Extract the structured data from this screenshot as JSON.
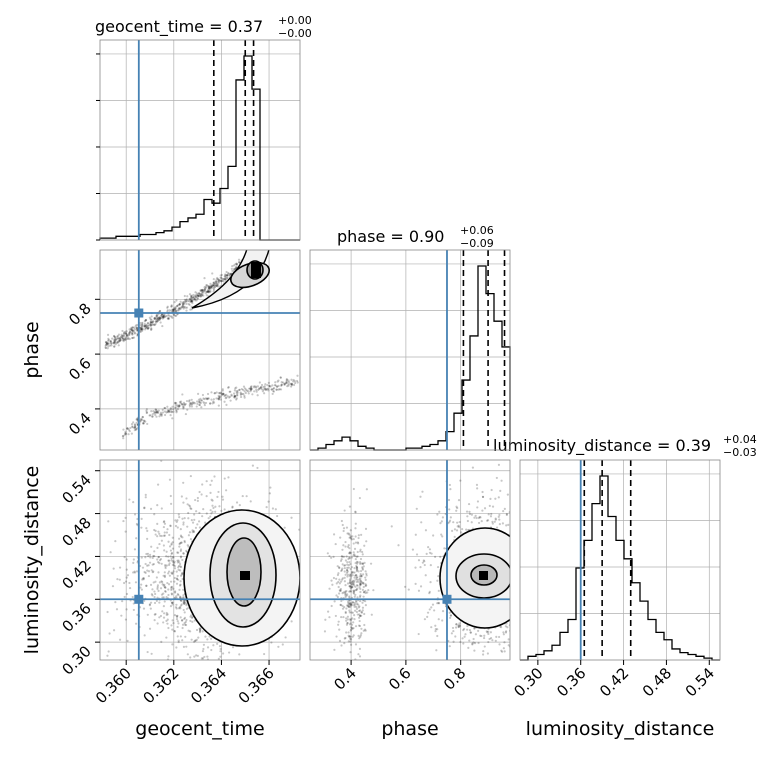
{
  "chart_data": {
    "type": "corner",
    "parameters": [
      "geocent_time",
      "phase",
      "luminosity_distance"
    ],
    "truths": {
      "geocent_time": 0.36053,
      "phase": 0.75,
      "luminosity_distance": 0.36
    },
    "colors": {
      "truth": "#4682b4",
      "hist": "#000000",
      "grid": "#b0b0b0",
      "scatter": "#000000"
    },
    "grid": true,
    "titles": [
      {
        "param": "geocent_time",
        "text": "geocent_time = 0.37",
        "plus": "+0.00",
        "minus": "−0.00"
      },
      {
        "param": "phase",
        "text": "phase = 0.90",
        "plus": "+0.06",
        "minus": "−0.09"
      },
      {
        "param": "luminosity_distance",
        "text": "luminosity_distance = 0.39",
        "plus": "+0.04",
        "minus": "−0.03"
      }
    ],
    "axes": {
      "geocent_time": {
        "label": "geocent_time",
        "range": [
          0.3589,
          0.3673
        ],
        "ticks": [
          "0.360",
          "0.362",
          "0.364",
          "0.366"
        ],
        "tick_values": [
          0.36,
          0.362,
          0.364,
          0.366
        ]
      },
      "phase": {
        "label": "phase",
        "range": [
          0.25,
          0.98
        ],
        "ticks": [
          "0.4",
          "0.6",
          "0.8"
        ],
        "tick_values": [
          0.4,
          0.6,
          0.8
        ]
      },
      "luminosity_distance": {
        "label": "luminosity_distance",
        "range": [
          0.275,
          0.555
        ],
        "ticks": [
          "0.30",
          "0.36",
          "0.42",
          "0.48",
          "0.54"
        ],
        "tick_values": [
          0.3,
          0.36,
          0.42,
          0.48,
          0.54
        ]
      }
    },
    "histograms": {
      "geocent_time": {
        "edges": [
          0.3589,
          0.359236,
          0.359572,
          0.359908,
          0.360244,
          0.36058,
          0.360916,
          0.361252,
          0.361588,
          0.361924,
          0.36226,
          0.362596,
          0.362932,
          0.363268,
          0.363604,
          0.36394,
          0.364276,
          0.364612,
          0.364948,
          0.365284,
          0.36562,
          0.365956,
          0.366292,
          0.366628,
          0.366964,
          0.3673
        ],
        "counts": [
          1,
          1,
          2,
          2,
          2,
          3,
          3,
          4,
          5,
          7,
          10,
          12,
          14,
          22,
          20,
          28,
          40,
          87,
          100,
          82,
          0,
          0,
          0,
          0,
          0
        ],
        "quantiles": [
          0.36368,
          0.365,
          0.36535
        ]
      },
      "phase": {
        "edges": [
          0.25,
          0.2792,
          0.3084,
          0.3376,
          0.3668,
          0.396,
          0.4252,
          0.4544,
          0.4836,
          0.5128,
          0.542,
          0.5712,
          0.6004,
          0.6296,
          0.6588,
          0.688,
          0.7172,
          0.7464,
          0.7756,
          0.8048,
          0.834,
          0.8632,
          0.8924,
          0.9216,
          0.9508,
          0.98
        ],
        "counts": [
          0,
          1,
          3,
          5,
          7,
          5,
          2,
          1,
          0,
          0,
          0,
          0,
          1,
          1,
          2,
          3,
          5,
          10,
          20,
          38,
          62,
          100,
          85,
          70,
          56
        ],
        "quantiles": [
          0.81,
          0.9,
          0.96
        ]
      },
      "luminosity_distance": {
        "edges": [
          0.275,
          0.2862,
          0.2974,
          0.3086,
          0.3198,
          0.331,
          0.3422,
          0.3534,
          0.3646,
          0.3758,
          0.387,
          0.3982,
          0.4094,
          0.4206,
          0.4318,
          0.443,
          0.4542,
          0.4654,
          0.4766,
          0.4878,
          0.499,
          0.5102,
          0.5214,
          0.5326,
          0.5438,
          0.555
        ],
        "counts": [
          0,
          2,
          3,
          5,
          8,
          15,
          22,
          50,
          65,
          85,
          100,
          78,
          65,
          55,
          42,
          32,
          22,
          15,
          11,
          6,
          4,
          3,
          2,
          1,
          0
        ],
        "quantiles": [
          0.365,
          0.39,
          0.43
        ]
      }
    },
    "pairs": [
      {
        "x": "geocent_time",
        "y": "phase",
        "peak": [
          0.36535,
          0.905
        ]
      },
      {
        "x": "geocent_time",
        "y": "luminosity_distance",
        "peak": [
          0.36535,
          0.39
        ]
      },
      {
        "x": "phase",
        "y": "luminosity_distance",
        "peak": [
          0.905,
          0.39
        ]
      }
    ]
  }
}
